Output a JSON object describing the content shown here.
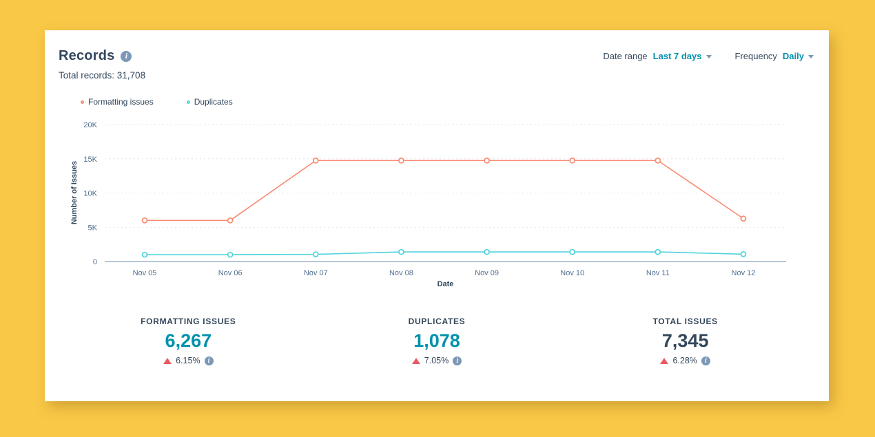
{
  "page": {
    "background_color": "#F9C847",
    "card_color": "#FFFFFF"
  },
  "header": {
    "title": "Records",
    "controls": {
      "date_range_label": "Date range",
      "date_range_value": "Last 7 days",
      "frequency_label": "Frequency",
      "frequency_value": "Daily"
    }
  },
  "subtitle": {
    "total_records": "Total records: 31,708"
  },
  "legend": {
    "items": [
      {
        "label": "Formatting issues",
        "color": "#F98A70"
      },
      {
        "label": "Duplicates",
        "color": "#51D3DB"
      }
    ]
  },
  "chart_data": {
    "type": "line",
    "x": [
      "Nov 05",
      "Nov 06",
      "Nov 07",
      "Nov 08",
      "Nov 09",
      "Nov 10",
      "Nov 11",
      "Nov 12"
    ],
    "series": [
      {
        "name": "Formatting issues",
        "color": "#F98A70",
        "values": [
          6000,
          6000,
          14750,
          14750,
          14750,
          14750,
          14750,
          6267
        ]
      },
      {
        "name": "Duplicates",
        "color": "#51D3DB",
        "values": [
          1000,
          1000,
          1050,
          1400,
          1400,
          1400,
          1400,
          1078
        ]
      }
    ],
    "xlabel": "Date",
    "ylabel": "Number of Issues",
    "ylim": [
      0,
      20000
    ],
    "yticks": [
      {
        "v": 0,
        "label": "0"
      },
      {
        "v": 5000,
        "label": "5K"
      },
      {
        "v": 10000,
        "label": "10K"
      },
      {
        "v": 15000,
        "label": "15K"
      },
      {
        "v": 20000,
        "label": "20K"
      }
    ],
    "grid": "dashed horizontal gridlines, solid baseline",
    "legend_position": "top-left",
    "colors": {
      "gridline": "#DFE5EE",
      "baseline": "#9DB1C8",
      "tick_text": "#516F90",
      "axis_title_text": "#33475B"
    }
  },
  "stats": [
    {
      "label": "FORMATTING ISSUES",
      "value": "6,267",
      "value_color": "#0091AE",
      "delta": "6.15%",
      "direction": "up",
      "delta_color": "#EA5A62"
    },
    {
      "label": "DUPLICATES",
      "value": "1,078",
      "value_color": "#0091AE",
      "delta": "7.05%",
      "direction": "up",
      "delta_color": "#EA5A62"
    },
    {
      "label": "TOTAL ISSUES",
      "value": "7,345",
      "value_color": "#33475B",
      "delta": "6.28%",
      "direction": "up",
      "delta_color": "#EA5A62"
    }
  ]
}
